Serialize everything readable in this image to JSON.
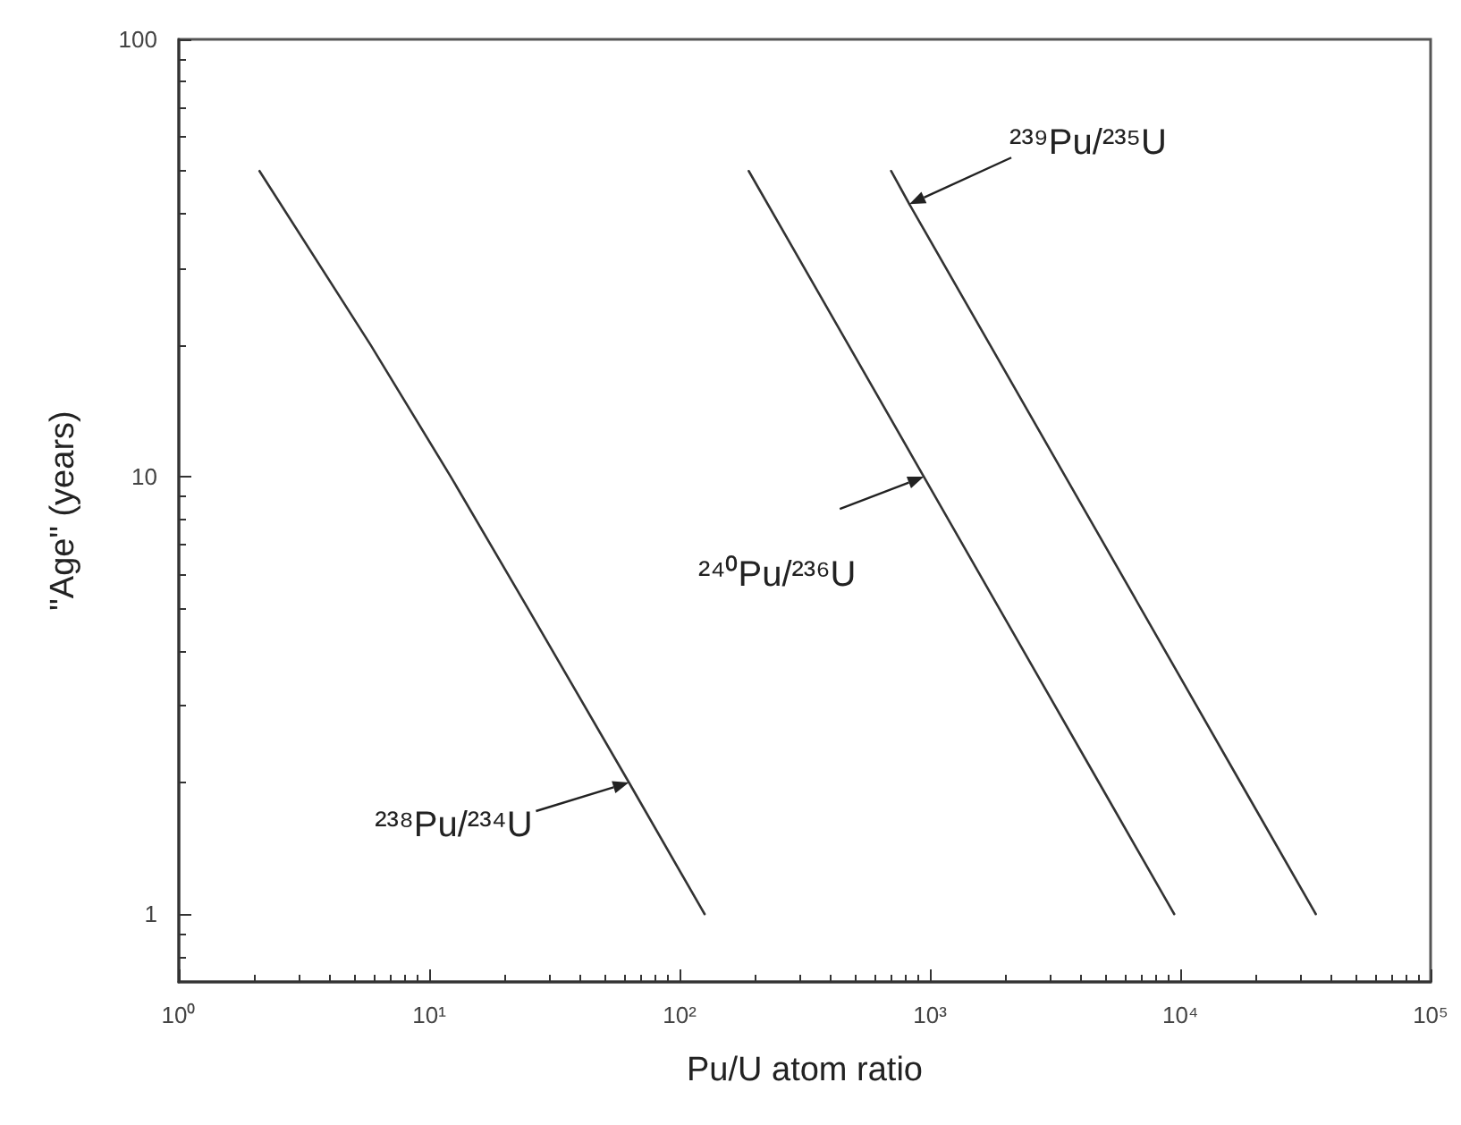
{
  "chart_data": {
    "type": "line",
    "xlabel": "Pu/U atom ratio",
    "ylabel": "\"Age\" (years)",
    "log": "xy",
    "grid": false,
    "marker": "none",
    "line_style": "solid",
    "xlim": [
      1,
      100000
    ],
    "ylim": [
      0.7,
      100
    ],
    "xticks": [
      {
        "value": 1,
        "label": "10⁰"
      },
      {
        "value": 10,
        "label": "10¹"
      },
      {
        "value": 100,
        "label": "10²"
      },
      {
        "value": 1000,
        "label": "10³"
      },
      {
        "value": 10000,
        "label": "10⁴"
      },
      {
        "value": 100000,
        "label": "10⁵"
      }
    ],
    "yticks": [
      1,
      10,
      100
    ],
    "series": [
      {
        "color": "#333333",
        "x": [
          2.1,
          5.84,
          12.2,
          24.8,
          62.8,
          126
        ],
        "values": [
          50,
          20,
          10,
          5,
          2,
          1
        ]
      },
      {
        "color": "#333333",
        "x": [
          189,
          473,
          946,
          1892,
          4732,
          9465
        ],
        "values": [
          50,
          20,
          10,
          5,
          2,
          1
        ]
      },
      {
        "color": "#333333",
        "x": [
          700,
          828,
          1740,
          3480,
          6960,
          17400,
          34800
        ],
        "values": [
          50,
          42,
          20,
          10,
          5,
          2,
          1
        ]
      }
    ],
    "annotations": [
      {
        "text": "²³⁸Pu/²³⁴U",
        "x": 62.8,
        "y": 2
      },
      {
        "text": "²⁴⁰Pu/²³⁶U",
        "x": 946,
        "y": 10
      },
      {
        "text": "²³⁹Pu/²³⁵U",
        "x": 828,
        "y": 42
      }
    ]
  }
}
